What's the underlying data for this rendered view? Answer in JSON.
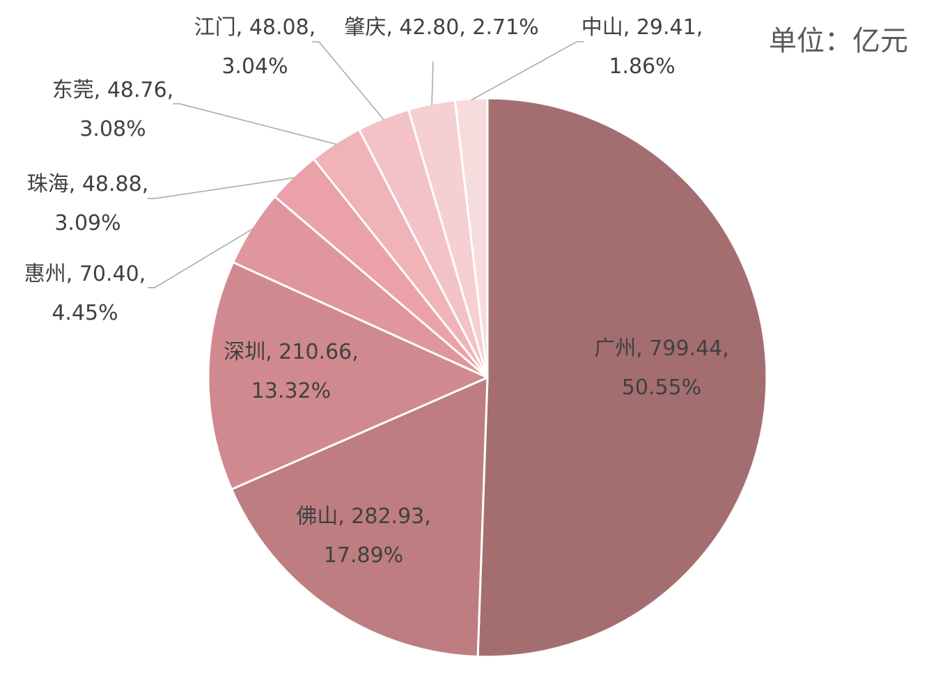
{
  "chart_data": {
    "type": "pie",
    "unit_label": "单位：亿元",
    "slices": [
      {
        "name": "广州",
        "value": 799.44,
        "value_text": "799.44",
        "percent": "50.55%",
        "color": "#a46e71"
      },
      {
        "name": "佛山",
        "value": 282.93,
        "value_text": "282.93",
        "percent": "17.89%",
        "color": "#bd7d81"
      },
      {
        "name": "深圳",
        "value": 210.66,
        "value_text": "210.66",
        "percent": "13.32%",
        "color": "#d08a8f"
      },
      {
        "name": "惠州",
        "value": 70.4,
        "value_text": "70.40",
        "percent": "4.45%",
        "color": "#df969c"
      },
      {
        "name": "珠海",
        "value": 48.88,
        "value_text": "48.88",
        "percent": "3.09%",
        "color": "#eaa2a8"
      },
      {
        "name": "东莞",
        "value": 48.76,
        "value_text": "48.76",
        "percent": "3.08%",
        "color": "#f0b3b8"
      },
      {
        "name": "江门",
        "value": 48.08,
        "value_text": "48.08",
        "percent": "3.04%",
        "color": "#f3c2c6"
      },
      {
        "name": "肇庆",
        "value": 42.8,
        "value_text": "42.80",
        "percent": "2.71%",
        "color": "#f5cfd2"
      },
      {
        "name": "中山",
        "value": 29.41,
        "value_text": "29.41",
        "percent": "1.86%",
        "color": "#f7dcde"
      }
    ]
  }
}
